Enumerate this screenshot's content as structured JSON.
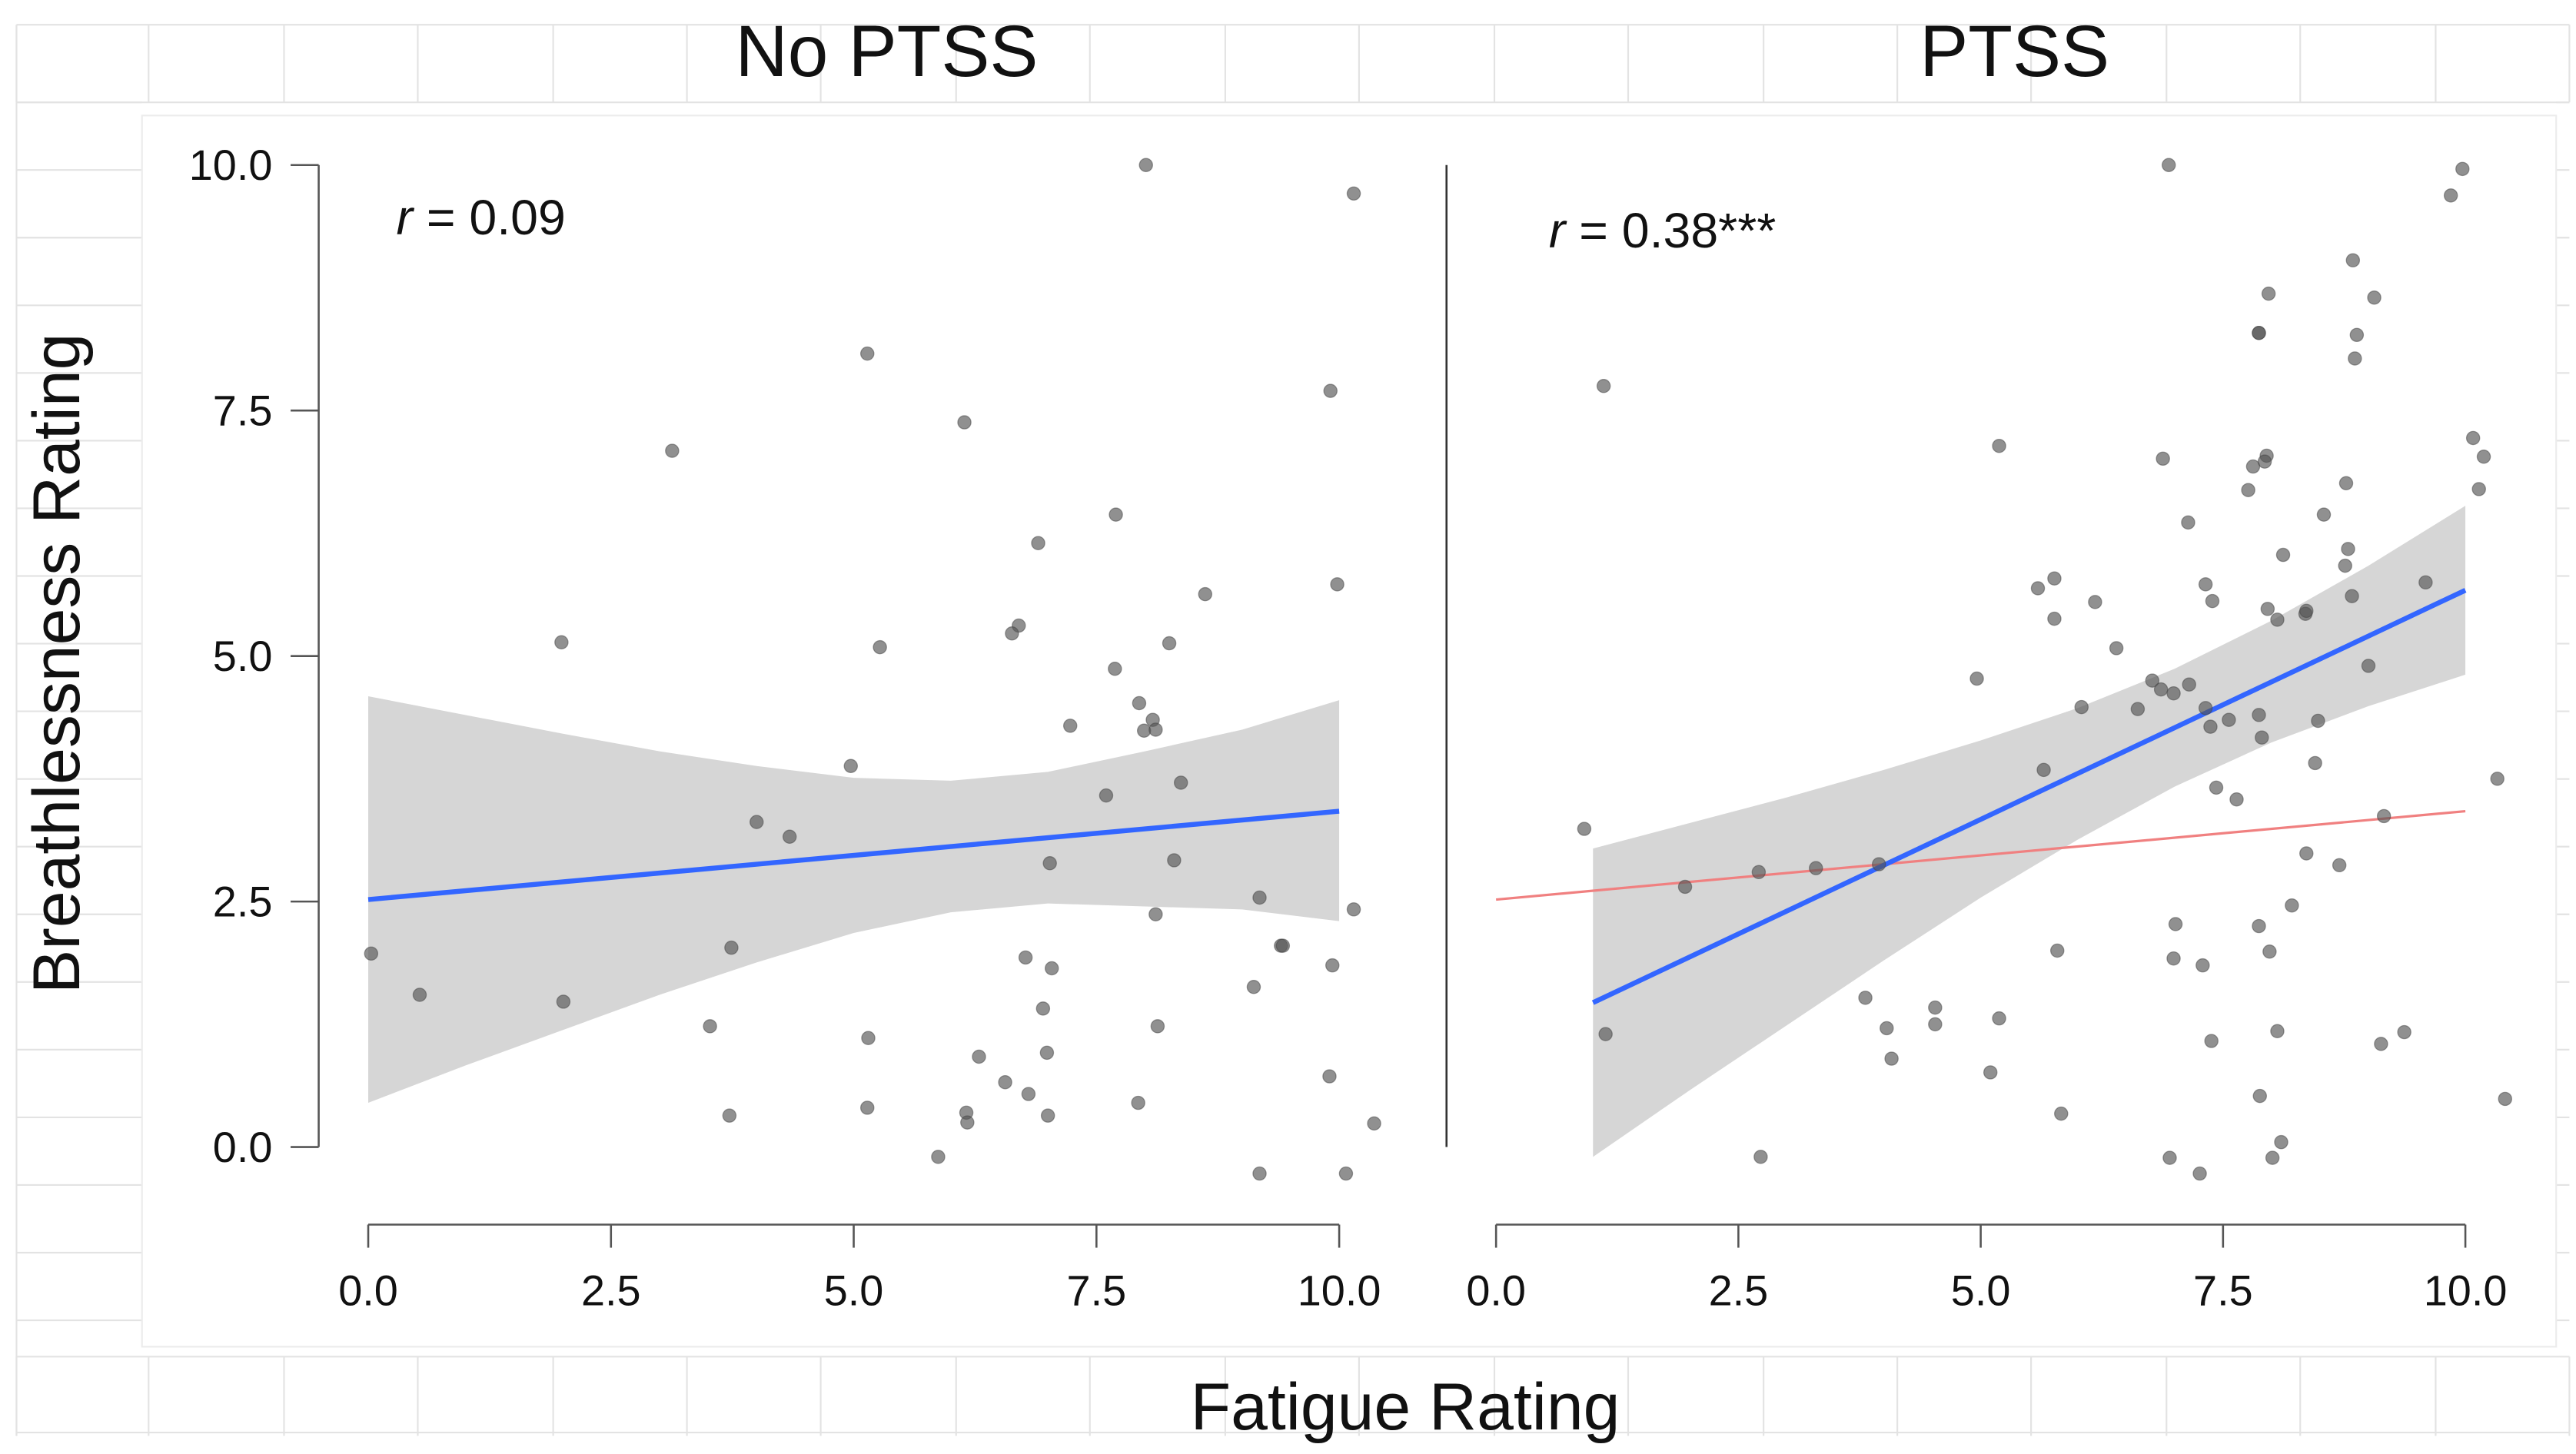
{
  "chart_data": [
    {
      "type": "scatter",
      "title": "No PTSS",
      "xlabel": "Fatigue Rating",
      "ylabel": "Breathlessness Rating",
      "xlim": [
        0,
        10
      ],
      "ylim": [
        0,
        10
      ],
      "xticks": [
        "0.0",
        "2.5",
        "5.0",
        "7.5",
        "10.0"
      ],
      "yticks": [
        "0.0",
        "2.5",
        "5.0",
        "7.5",
        "10.0"
      ],
      "annotation": {
        "italic": "r",
        "text": " = 0.09"
      },
      "points": [
        [
          8.01,
          10.0
        ],
        [
          10.15,
          9.71
        ],
        [
          5.14,
          8.08
        ],
        [
          6.14,
          7.38
        ],
        [
          3.13,
          7.09
        ],
        [
          9.91,
          7.7
        ],
        [
          7.7,
          6.44
        ],
        [
          6.9,
          6.15
        ],
        [
          8.62,
          5.63
        ],
        [
          9.98,
          5.73
        ],
        [
          6.7,
          5.31
        ],
        [
          6.63,
          5.23
        ],
        [
          1.99,
          5.14
        ],
        [
          5.27,
          5.09
        ],
        [
          8.25,
          5.13
        ],
        [
          7.69,
          4.87
        ],
        [
          7.94,
          4.52
        ],
        [
          8.08,
          4.35
        ],
        [
          7.99,
          4.24
        ],
        [
          8.11,
          4.25
        ],
        [
          7.23,
          4.29
        ],
        [
          4.97,
          3.88
        ],
        [
          7.6,
          3.58
        ],
        [
          8.37,
          3.71
        ],
        [
          4.0,
          3.31
        ],
        [
          4.34,
          3.16
        ],
        [
          7.02,
          2.89
        ],
        [
          8.3,
          2.92
        ],
        [
          9.18,
          2.54
        ],
        [
          10.15,
          2.42
        ],
        [
          8.11,
          2.37
        ],
        [
          0.03,
          1.97
        ],
        [
          9.4,
          2.05
        ],
        [
          9.42,
          2.05
        ],
        [
          3.74,
          2.03
        ],
        [
          6.77,
          1.93
        ],
        [
          9.93,
          1.85
        ],
        [
          7.04,
          1.82
        ],
        [
          0.53,
          1.55
        ],
        [
          2.01,
          1.48
        ],
        [
          9.12,
          1.63
        ],
        [
          6.95,
          1.41
        ],
        [
          3.52,
          1.23
        ],
        [
          8.13,
          1.23
        ],
        [
          5.15,
          1.11
        ],
        [
          6.29,
          0.92
        ],
        [
          6.99,
          0.96
        ],
        [
          9.9,
          0.72
        ],
        [
          6.56,
          0.66
        ],
        [
          6.8,
          0.54
        ],
        [
          7.93,
          0.45
        ],
        [
          5.14,
          0.4
        ],
        [
          3.72,
          0.32
        ],
        [
          6.16,
          0.35
        ],
        [
          6.17,
          0.25
        ],
        [
          7.0,
          0.32
        ],
        [
          10.36,
          0.24
        ],
        [
          5.87,
          -0.1
        ],
        [
          9.18,
          -0.27
        ],
        [
          10.07,
          -0.27
        ]
      ],
      "fit": {
        "x": [
          0,
          10
        ],
        "y": [
          2.52,
          3.42
        ]
      },
      "ci": {
        "x": [
          0,
          1,
          2,
          3,
          4,
          5,
          6,
          7,
          8,
          9,
          10
        ],
        "lower": [
          0.45,
          0.83,
          1.19,
          1.55,
          1.88,
          2.18,
          2.39,
          2.48,
          2.45,
          2.42,
          2.3
        ],
        "upper": [
          4.59,
          4.4,
          4.21,
          4.03,
          3.88,
          3.76,
          3.73,
          3.82,
          4.03,
          4.25,
          4.55
        ]
      }
    },
    {
      "type": "scatter",
      "title": "PTSS",
      "xlabel": "Fatigue Rating",
      "ylabel": "Breathlessness Rating",
      "xlim": [
        0,
        10
      ],
      "ylim": [
        0,
        10
      ],
      "xticks": [
        "0.0",
        "2.5",
        "5.0",
        "7.5",
        "10.0"
      ],
      "annotation": {
        "italic": "r",
        "text": " = 0.38***"
      },
      "points": [
        [
          6.94,
          10.0
        ],
        [
          9.97,
          9.96
        ],
        [
          9.85,
          9.69
        ],
        [
          8.84,
          9.03
        ],
        [
          9.06,
          8.65
        ],
        [
          7.97,
          8.69
        ],
        [
          7.87,
          8.29
        ],
        [
          7.87,
          8.29
        ],
        [
          8.88,
          8.27
        ],
        [
          8.86,
          8.03
        ],
        [
          1.11,
          7.75
        ],
        [
          5.19,
          7.14
        ],
        [
          6.88,
          7.01
        ],
        [
          10.08,
          7.22
        ],
        [
          10.19,
          7.03
        ],
        [
          7.81,
          6.93
        ],
        [
          7.95,
          7.04
        ],
        [
          7.93,
          6.98
        ],
        [
          7.76,
          6.69
        ],
        [
          10.14,
          6.7
        ],
        [
          8.77,
          6.76
        ],
        [
          7.14,
          6.36
        ],
        [
          8.54,
          6.44
        ],
        [
          8.12,
          6.03
        ],
        [
          8.79,
          6.09
        ],
        [
          8.76,
          5.92
        ],
        [
          5.59,
          5.69
        ],
        [
          5.76,
          5.79
        ],
        [
          7.32,
          5.73
        ],
        [
          7.39,
          5.56
        ],
        [
          5.76,
          5.38
        ],
        [
          6.18,
          5.55
        ],
        [
          9.59,
          5.75
        ],
        [
          8.83,
          5.61
        ],
        [
          7.96,
          5.48
        ],
        [
          8.06,
          5.37
        ],
        [
          8.35,
          5.43
        ],
        [
          8.36,
          5.46
        ],
        [
          6.4,
          5.08
        ],
        [
          4.96,
          4.77
        ],
        [
          9.0,
          4.9
        ],
        [
          6.77,
          4.75
        ],
        [
          6.86,
          4.66
        ],
        [
          6.99,
          4.62
        ],
        [
          7.15,
          4.71
        ],
        [
          6.04,
          4.48
        ],
        [
          6.62,
          4.46
        ],
        [
          7.32,
          4.47
        ],
        [
          7.37,
          4.28
        ],
        [
          7.56,
          4.35
        ],
        [
          7.87,
          4.4
        ],
        [
          7.9,
          4.17
        ],
        [
          8.48,
          4.34
        ],
        [
          5.65,
          3.84
        ],
        [
          8.45,
          3.91
        ],
        [
          10.33,
          3.75
        ],
        [
          7.43,
          3.66
        ],
        [
          7.64,
          3.54
        ],
        [
          9.16,
          3.37
        ],
        [
          0.91,
          3.24
        ],
        [
          8.36,
          2.99
        ],
        [
          8.7,
          2.87
        ],
        [
          2.71,
          2.8
        ],
        [
          3.3,
          2.84
        ],
        [
          3.95,
          2.88
        ],
        [
          1.95,
          2.65
        ],
        [
          8.21,
          2.46
        ],
        [
          7.01,
          2.27
        ],
        [
          7.87,
          2.25
        ],
        [
          5.79,
          2.0
        ],
        [
          7.98,
          1.99
        ],
        [
          6.99,
          1.92
        ],
        [
          7.29,
          1.85
        ],
        [
          3.81,
          1.52
        ],
        [
          4.53,
          1.42
        ],
        [
          4.53,
          1.25
        ],
        [
          5.19,
          1.31
        ],
        [
          4.03,
          1.21
        ],
        [
          1.13,
          1.15
        ],
        [
          4.08,
          0.9
        ],
        [
          8.06,
          1.18
        ],
        [
          7.38,
          1.08
        ],
        [
          9.13,
          1.05
        ],
        [
          9.37,
          1.17
        ],
        [
          5.1,
          0.76
        ],
        [
          10.41,
          0.49
        ],
        [
          5.83,
          0.34
        ],
        [
          7.88,
          0.52
        ],
        [
          8.1,
          0.05
        ],
        [
          2.73,
          -0.1
        ],
        [
          6.95,
          -0.11
        ],
        [
          8.01,
          -0.11
        ],
        [
          7.26,
          -0.27
        ]
      ],
      "fit": {
        "x": [
          1,
          10
        ],
        "y": [
          1.47,
          5.67
        ]
      },
      "reference_fit": {
        "x": [
          0,
          10
        ],
        "y": [
          2.52,
          3.42
        ]
      },
      "ci": {
        "x": [
          1,
          2,
          3,
          4,
          5,
          6,
          7,
          8,
          9,
          10
        ],
        "lower": [
          -0.1,
          0.58,
          1.24,
          1.9,
          2.54,
          3.13,
          3.67,
          4.12,
          4.49,
          4.81
        ],
        "upper": [
          3.04,
          3.3,
          3.56,
          3.84,
          4.14,
          4.47,
          4.87,
          5.36,
          5.92,
          6.53
        ]
      }
    }
  ],
  "colors": {
    "fit": "#3366ff",
    "reference_fit": "#f08080",
    "ci": "#d6d6d6",
    "points": "#555555"
  }
}
